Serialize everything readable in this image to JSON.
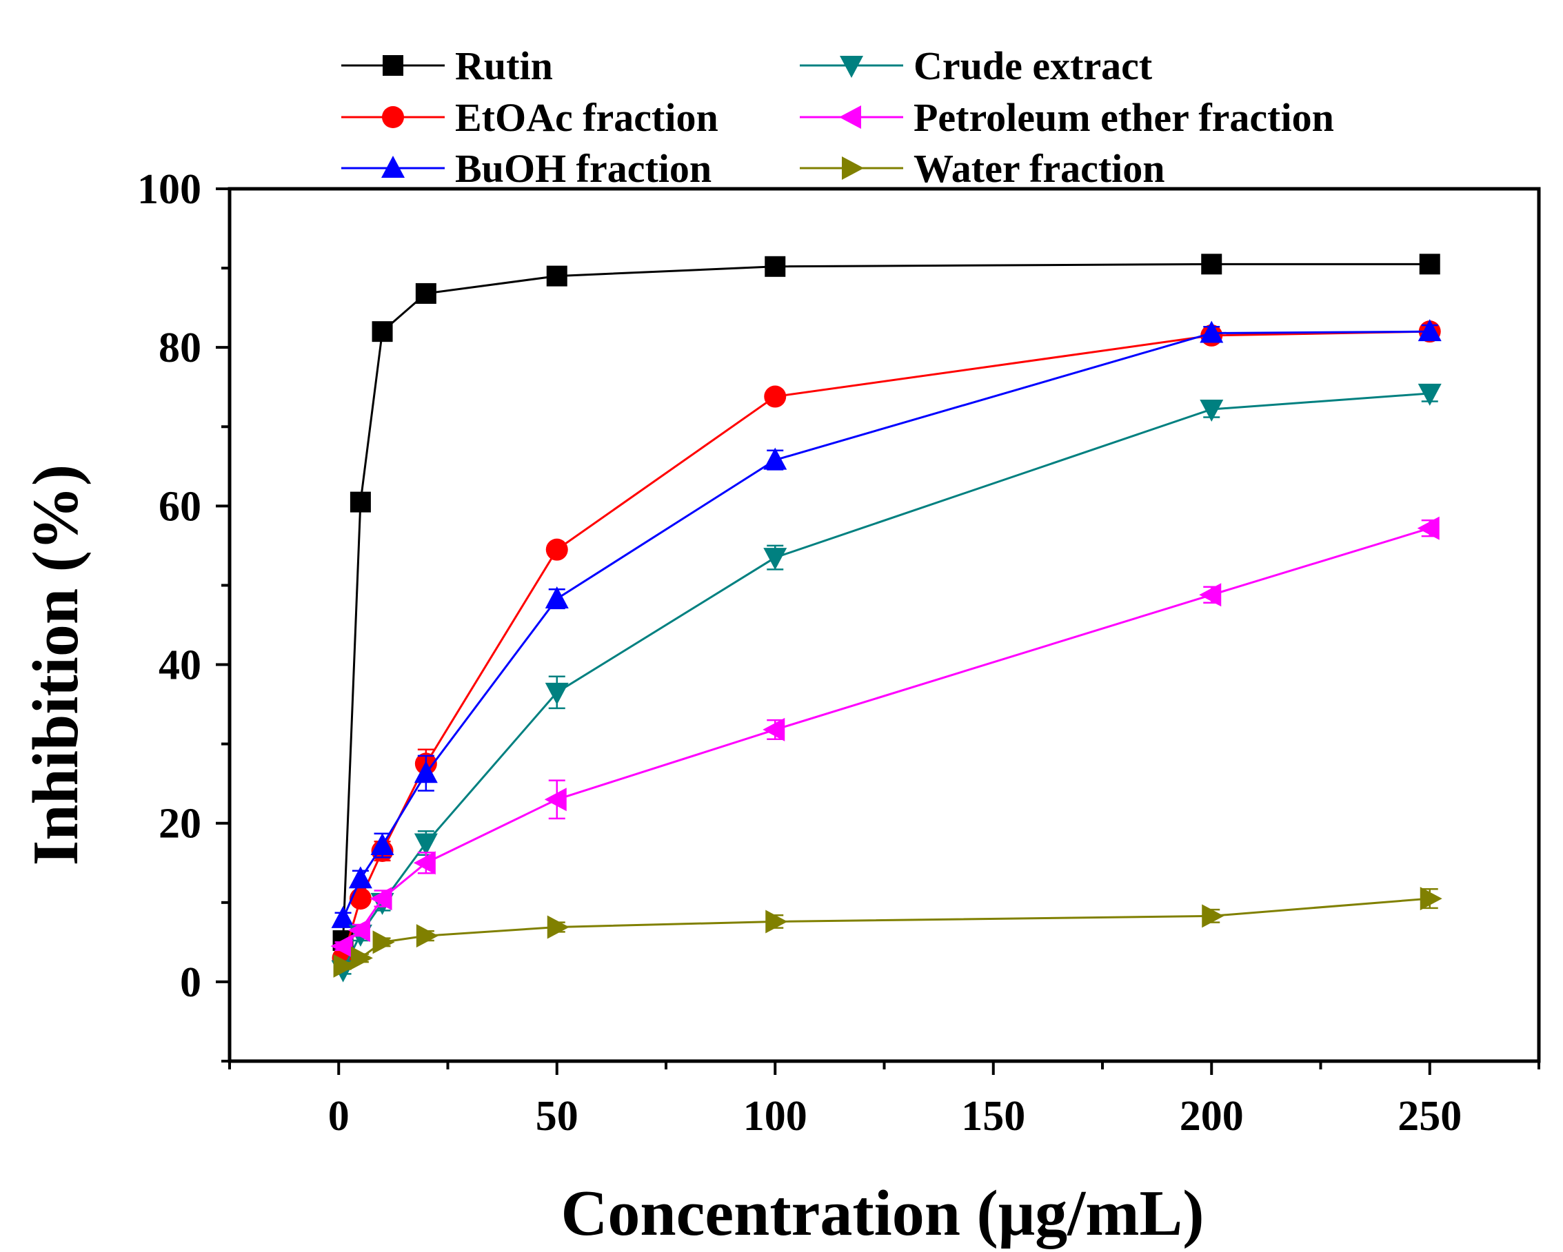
{
  "chart_data": {
    "type": "line",
    "title": "",
    "xlabel": "Concentration (μg/mL)",
    "ylabel": "Inhibition (%)",
    "xlim": [
      -25,
      275
    ],
    "ylim": [
      -10,
      100
    ],
    "xticks": [
      0,
      50,
      100,
      150,
      200,
      250
    ],
    "yticks": [
      0,
      20,
      40,
      60,
      80,
      100
    ],
    "legend_position": "top",
    "x": [
      1,
      5,
      10,
      20,
      50,
      100,
      200,
      250
    ],
    "series": [
      {
        "name": "Rutin",
        "color": "#000000",
        "marker": "square",
        "values": [
          5.2,
          60.5,
          82.0,
          86.8,
          89.0,
          90.2,
          90.5,
          90.5
        ],
        "errors": [
          0.5,
          0.6,
          0.6,
          0.5,
          0.5,
          0.4,
          0.4,
          0.4
        ]
      },
      {
        "name": "EtOAc fraction",
        "color": "#ff0000",
        "marker": "circle",
        "values": [
          3.0,
          10.5,
          16.5,
          27.5,
          54.5,
          73.8,
          81.5,
          82.0
        ],
        "errors": [
          0.6,
          0.8,
          1.2,
          1.8,
          0.8,
          0.8,
          0.8,
          0.8
        ]
      },
      {
        "name": "BuOH fraction",
        "color": "#0000ff",
        "marker": "triangle-up",
        "values": [
          8.0,
          13.0,
          17.2,
          26.3,
          48.3,
          65.8,
          81.8,
          82.0
        ],
        "errors": [
          0.7,
          1.0,
          1.5,
          2.2,
          1.2,
          1.2,
          0.8,
          0.8
        ]
      },
      {
        "name": "Crude extract",
        "color": "#008080",
        "marker": "triangle-down",
        "values": [
          1.5,
          6.0,
          10.0,
          17.5,
          36.5,
          53.5,
          72.2,
          74.2
        ],
        "errors": [
          0.5,
          0.8,
          1.0,
          1.5,
          2.0,
          1.5,
          1.0,
          1.0
        ]
      },
      {
        "name": "Petroleum ether fraction",
        "color": "#ff00ff",
        "marker": "triangle-left",
        "values": [
          4.5,
          6.5,
          10.5,
          15.0,
          23.0,
          31.8,
          48.8,
          57.2
        ],
        "errors": [
          0.5,
          0.7,
          1.0,
          1.3,
          2.4,
          1.2,
          1.0,
          1.0
        ]
      },
      {
        "name": "Water fraction",
        "color": "#808000",
        "marker": "triangle-right",
        "values": [
          2.0,
          3.0,
          5.0,
          5.8,
          6.9,
          7.6,
          8.3,
          10.5
        ],
        "errors": [
          0.4,
          0.5,
          0.5,
          0.6,
          0.6,
          0.8,
          0.8,
          1.2
        ]
      }
    ]
  }
}
